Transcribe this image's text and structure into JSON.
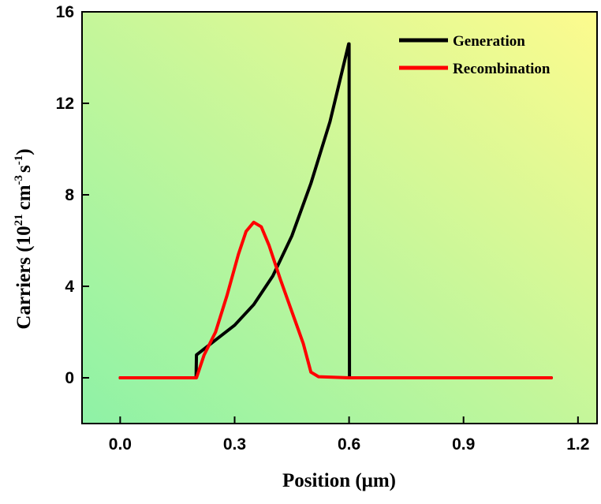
{
  "chart_data": {
    "type": "line",
    "title": "",
    "xlabel": "Position (μm)",
    "ylabel": {
      "prefix": "Carriers (10",
      "exp1": "21",
      "mid1": "cm",
      "exp2": "-3",
      "mid2": "s",
      "exp3": "-1",
      "suffix": ")"
    },
    "xlim": [
      -0.1,
      1.25
    ],
    "ylim": [
      -2,
      16
    ],
    "xticks": [
      0.0,
      0.3,
      0.6,
      0.9,
      1.2
    ],
    "xtick_labels": [
      "0.0",
      "0.3",
      "0.6",
      "0.9",
      "1.2"
    ],
    "yticks": [
      0,
      4,
      8,
      12,
      16
    ],
    "ytick_labels": [
      "0",
      "4",
      "8",
      "12",
      "16"
    ],
    "legend_position": "top-right",
    "series": [
      {
        "name": "Generation",
        "color": "#000000",
        "x": [
          0.0,
          0.199,
          0.2,
          0.25,
          0.3,
          0.35,
          0.4,
          0.45,
          0.5,
          0.55,
          0.599,
          0.6,
          0.601,
          0.65,
          1.05,
          1.13
        ],
        "y": [
          0,
          0,
          1.0,
          1.65,
          2.3,
          3.2,
          4.45,
          6.2,
          8.5,
          11.2,
          14.6,
          14.6,
          0,
          0,
          0,
          0
        ]
      },
      {
        "name": "Recombination",
        "color": "#ff0000",
        "x": [
          0.0,
          0.2,
          0.22,
          0.25,
          0.28,
          0.31,
          0.33,
          0.35,
          0.37,
          0.39,
          0.42,
          0.45,
          0.48,
          0.5,
          0.52,
          0.6,
          1.13
        ],
        "y": [
          0,
          0,
          1.0,
          2.0,
          3.6,
          5.4,
          6.4,
          6.8,
          6.6,
          5.8,
          4.3,
          2.9,
          1.5,
          0.25,
          0.05,
          0,
          0
        ]
      }
    ]
  },
  "colors": {
    "gradient_start": "#8ef2a6",
    "gradient_end": "#fdfb8e"
  }
}
